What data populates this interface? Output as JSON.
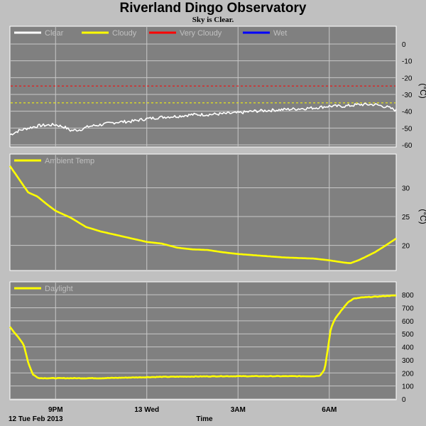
{
  "title": "Riverland Dingo Observatory",
  "subtitle": "Sky is Clear.",
  "colors": {
    "background": "#c0c0c0",
    "plot_background": "#808080",
    "grid": "#c8c8c8",
    "clear": "#ffffff",
    "cloudy": "#ffff00",
    "very_cloudy": "#ff0000",
    "wet": "#0000ff"
  },
  "x_axis": {
    "label": "Time",
    "date_label": "12 Tue Feb 2013",
    "ticks": [
      {
        "label": "9PM",
        "hours": 1.5
      },
      {
        "label": "13 Wed",
        "hours": 4.5
      },
      {
        "label": "3AM",
        "hours": 7.5
      },
      {
        "label": "6AM",
        "hours": 10.5
      }
    ],
    "range_hours": [
      0,
      12.7
    ]
  },
  "chart_data": [
    {
      "type": "line",
      "panel": "sky",
      "unit": "(°C)",
      "yticks": [
        "0",
        "-10",
        "-20",
        "-30",
        "-40",
        "-50",
        "-60"
      ],
      "ylim": [
        -60,
        0
      ],
      "grid": true,
      "legend": [
        "Clear",
        "Cloudy",
        "Very Cloudy",
        "Wet"
      ],
      "legend_placement": "top-left",
      "thresholds": [
        {
          "name": "Very Cloudy",
          "y": -25,
          "color": "#ff0000"
        },
        {
          "name": "Cloudy",
          "y": -35,
          "color": "#ffff00"
        }
      ],
      "series": [
        {
          "name": "Clear",
          "color": "#ffffff",
          "noise": 0.9,
          "x": [
            0,
            0.3,
            0.6,
            1.0,
            1.5,
            1.8,
            2.0,
            2.3,
            2.6,
            3.0,
            3.5,
            4.0,
            4.5,
            5.0,
            5.5,
            6.0,
            6.5,
            7.0,
            7.5,
            8.0,
            8.5,
            9.0,
            9.5,
            10.0,
            10.5,
            11.0,
            11.5,
            12.0,
            12.4,
            12.7
          ],
          "y": [
            -54,
            -51.5,
            -50,
            -48.5,
            -48,
            -49.5,
            -51.5,
            -51,
            -49,
            -48,
            -46.5,
            -46,
            -44.5,
            -43.5,
            -43,
            -42,
            -42,
            -41.5,
            -41,
            -40,
            -39.5,
            -39,
            -38.5,
            -38,
            -37,
            -37,
            -36,
            -36,
            -37.5,
            -39.5
          ]
        }
      ]
    },
    {
      "type": "line",
      "panel": "ambient",
      "unit": "(°C)",
      "yticks": [
        "20",
        "25",
        "30"
      ],
      "ylim": [
        16,
        35
      ],
      "grid": true,
      "legend": [
        "Ambient Temp"
      ],
      "legend_placement": "top-left",
      "series": [
        {
          "name": "Ambient Temp",
          "color": "#ffff00",
          "noise": 0,
          "x": [
            0,
            0.3,
            0.6,
            0.9,
            1.2,
            1.5,
            2.0,
            2.5,
            3.0,
            3.5,
            4.0,
            4.5,
            5.0,
            5.5,
            6.0,
            6.5,
            7.0,
            7.5,
            8.0,
            8.5,
            9.0,
            9.5,
            10.0,
            10.5,
            11.0,
            11.2,
            11.5,
            12.0,
            12.3,
            12.7
          ],
          "y": [
            33.8,
            31.5,
            29.2,
            28.5,
            27.2,
            26,
            24.8,
            23.2,
            22.4,
            21.8,
            21.2,
            20.6,
            20.3,
            19.6,
            19.3,
            19.2,
            18.8,
            18.5,
            18.3,
            18.1,
            17.9,
            17.8,
            17.7,
            17.4,
            17.0,
            16.9,
            17.5,
            18.8,
            19.8,
            21.2
          ]
        }
      ]
    },
    {
      "type": "line",
      "panel": "daylight",
      "unit": "",
      "yticks": [
        "0",
        "100",
        "200",
        "300",
        "400",
        "500",
        "600",
        "700",
        "800"
      ],
      "ylim": [
        0,
        850
      ],
      "grid": true,
      "legend": [
        "Daylight"
      ],
      "legend_placement": "top-left",
      "series": [
        {
          "name": "Daylight",
          "color": "#ffff00",
          "noise": 2,
          "x": [
            0,
            0.25,
            0.45,
            0.6,
            0.75,
            0.9,
            1.0,
            1.5,
            3.0,
            5.0,
            7.0,
            9.0,
            10.0,
            10.2,
            10.35,
            10.45,
            10.55,
            10.7,
            10.9,
            11.1,
            11.3,
            11.6,
            12.0,
            12.3,
            12.7
          ],
          "y": [
            555,
            480,
            420,
            280,
            190,
            165,
            160,
            160,
            160,
            170,
            175,
            175,
            175,
            180,
            230,
            380,
            540,
            620,
            680,
            740,
            770,
            780,
            785,
            790,
            795
          ]
        }
      ]
    }
  ]
}
